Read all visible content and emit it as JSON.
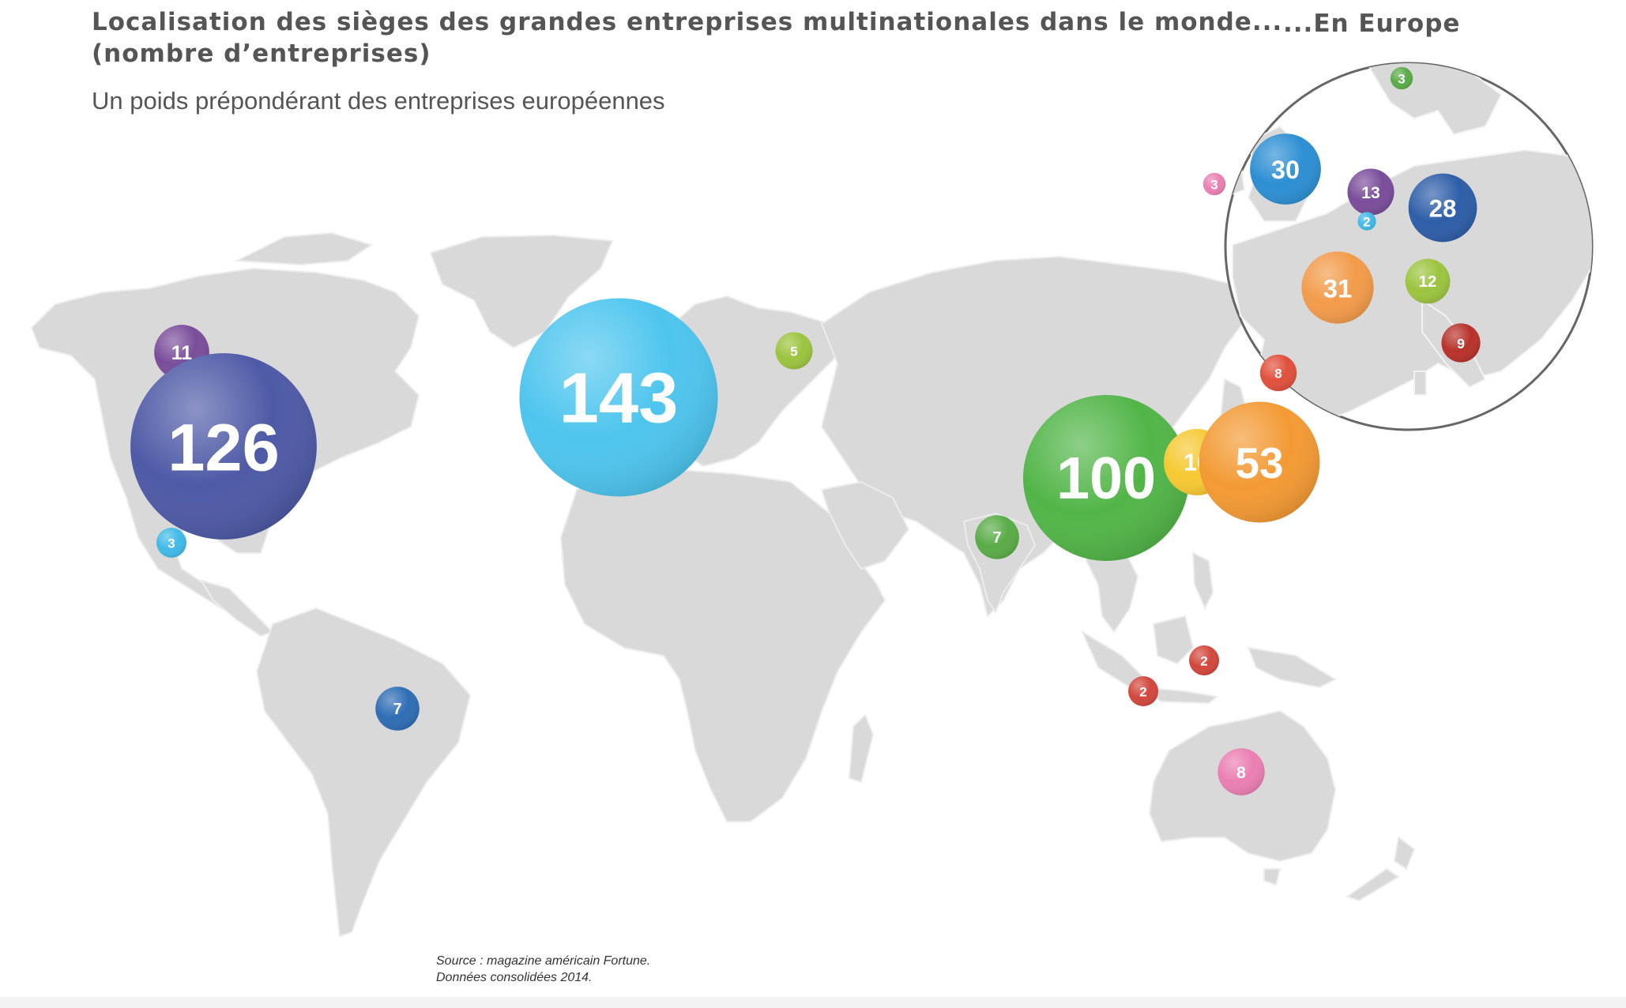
{
  "title_line1": "Localisation des sièges des grandes entreprises multinationales dans le monde...",
  "title_line2": "(nombre d’entreprises)",
  "subtitle": "Un poids prépondérant des entreprises européennes",
  "europe_title": "...En Europe",
  "source_line1": "Source : magazine américain Fortune.",
  "source_line2": "Données consolidées 2014.",
  "colors": {
    "land": "#d9d9d9",
    "inset_border": "#666666"
  },
  "world_markers": [
    {
      "label": "11",
      "value": 11,
      "color": "#7a4d9a"
    },
    {
      "label": "126",
      "value": 126,
      "color": "#4e5aa6"
    },
    {
      "label": "3",
      "value": 3,
      "color": "#41b9e8"
    },
    {
      "label": "7",
      "value": 7,
      "color": "#2f6db5"
    },
    {
      "label": "143",
      "value": 143,
      "color": "#4ec5ee"
    },
    {
      "label": "5",
      "value": 5,
      "color": "#9cc43f"
    },
    {
      "label": "7",
      "value": 7,
      "color": "#5aac48"
    },
    {
      "label": "100",
      "value": 100,
      "color": "#52b548"
    },
    {
      "label": "16",
      "value": 16,
      "color": "#f6c933"
    },
    {
      "label": "53",
      "value": 53,
      "color": "#f39a34"
    },
    {
      "label": "2",
      "value": 2,
      "color": "#d2473d"
    },
    {
      "label": "2",
      "value": 2,
      "color": "#d2473d"
    },
    {
      "label": "8",
      "value": 8,
      "color": "#ea7fb2"
    }
  ],
  "europe_markers": [
    {
      "label": "3",
      "value": 3,
      "color": "#5aac48"
    },
    {
      "label": "3",
      "value": 3,
      "color": "#ea7fb2"
    },
    {
      "label": "30",
      "value": 30,
      "color": "#2d8fd3"
    },
    {
      "label": "13",
      "value": 13,
      "color": "#7a4d9a"
    },
    {
      "label": "2",
      "value": 2,
      "color": "#41b9e8"
    },
    {
      "label": "28",
      "value": 28,
      "color": "#2e5ea8"
    },
    {
      "label": "31",
      "value": 31,
      "color": "#f29b4a"
    },
    {
      "label": "12",
      "value": 12,
      "color": "#9cc43f"
    },
    {
      "label": "9",
      "value": 9,
      "color": "#b8322b"
    },
    {
      "label": "8",
      "value": 8,
      "color": "#e0503c"
    }
  ]
}
